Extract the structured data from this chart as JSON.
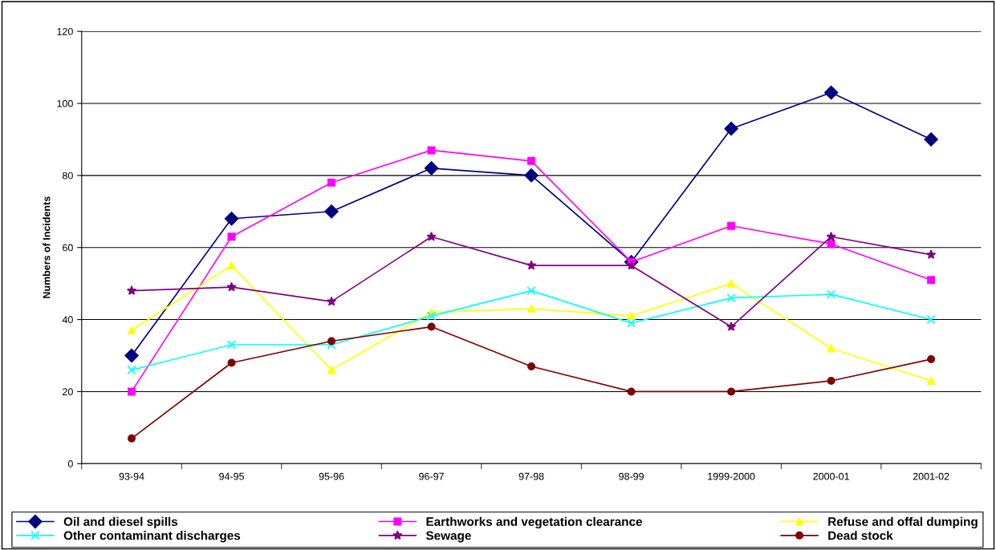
{
  "chart_data": {
    "type": "line",
    "ylabel": "Numbers of Incidents",
    "categories": [
      "93-94",
      "94-95",
      "95-96",
      "96-97",
      "97-98",
      "98-99",
      "1999-2000",
      "2000-01",
      "2001-02"
    ],
    "series": [
      {
        "name": "Oil and diesel spills",
        "color": "#000080",
        "marker": "diamond",
        "values": [
          30,
          68,
          70,
          82,
          80,
          56,
          93,
          103,
          90
        ]
      },
      {
        "name": "Earthworks and vegetation clearance",
        "color": "#ff00ff",
        "marker": "square",
        "values": [
          20,
          63,
          78,
          87,
          84,
          56,
          66,
          61,
          51
        ]
      },
      {
        "name": "Refuse and offal dumping",
        "color": "#ffff00",
        "marker": "triangle",
        "values": [
          37,
          55,
          26,
          42,
          43,
          41,
          50,
          32,
          23
        ]
      },
      {
        "name": "Other contaminant discharges",
        "color": "#00ffff",
        "marker": "cross",
        "values": [
          26,
          33,
          33,
          41,
          48,
          39,
          46,
          47,
          40
        ]
      },
      {
        "name": "Sewage",
        "color": "#800080",
        "marker": "star",
        "values": [
          48,
          49,
          45,
          63,
          55,
          55,
          38,
          63,
          58
        ]
      },
      {
        "name": "Dead stock",
        "color": "#800000",
        "marker": "circle",
        "values": [
          7,
          28,
          34,
          38,
          27,
          20,
          20,
          23,
          29
        ]
      }
    ],
    "ylim": [
      0,
      120
    ],
    "yticks": [
      0,
      20,
      40,
      60,
      80,
      100,
      120
    ],
    "grid": "y",
    "legend": "bottom",
    "line_style": "solid"
  }
}
